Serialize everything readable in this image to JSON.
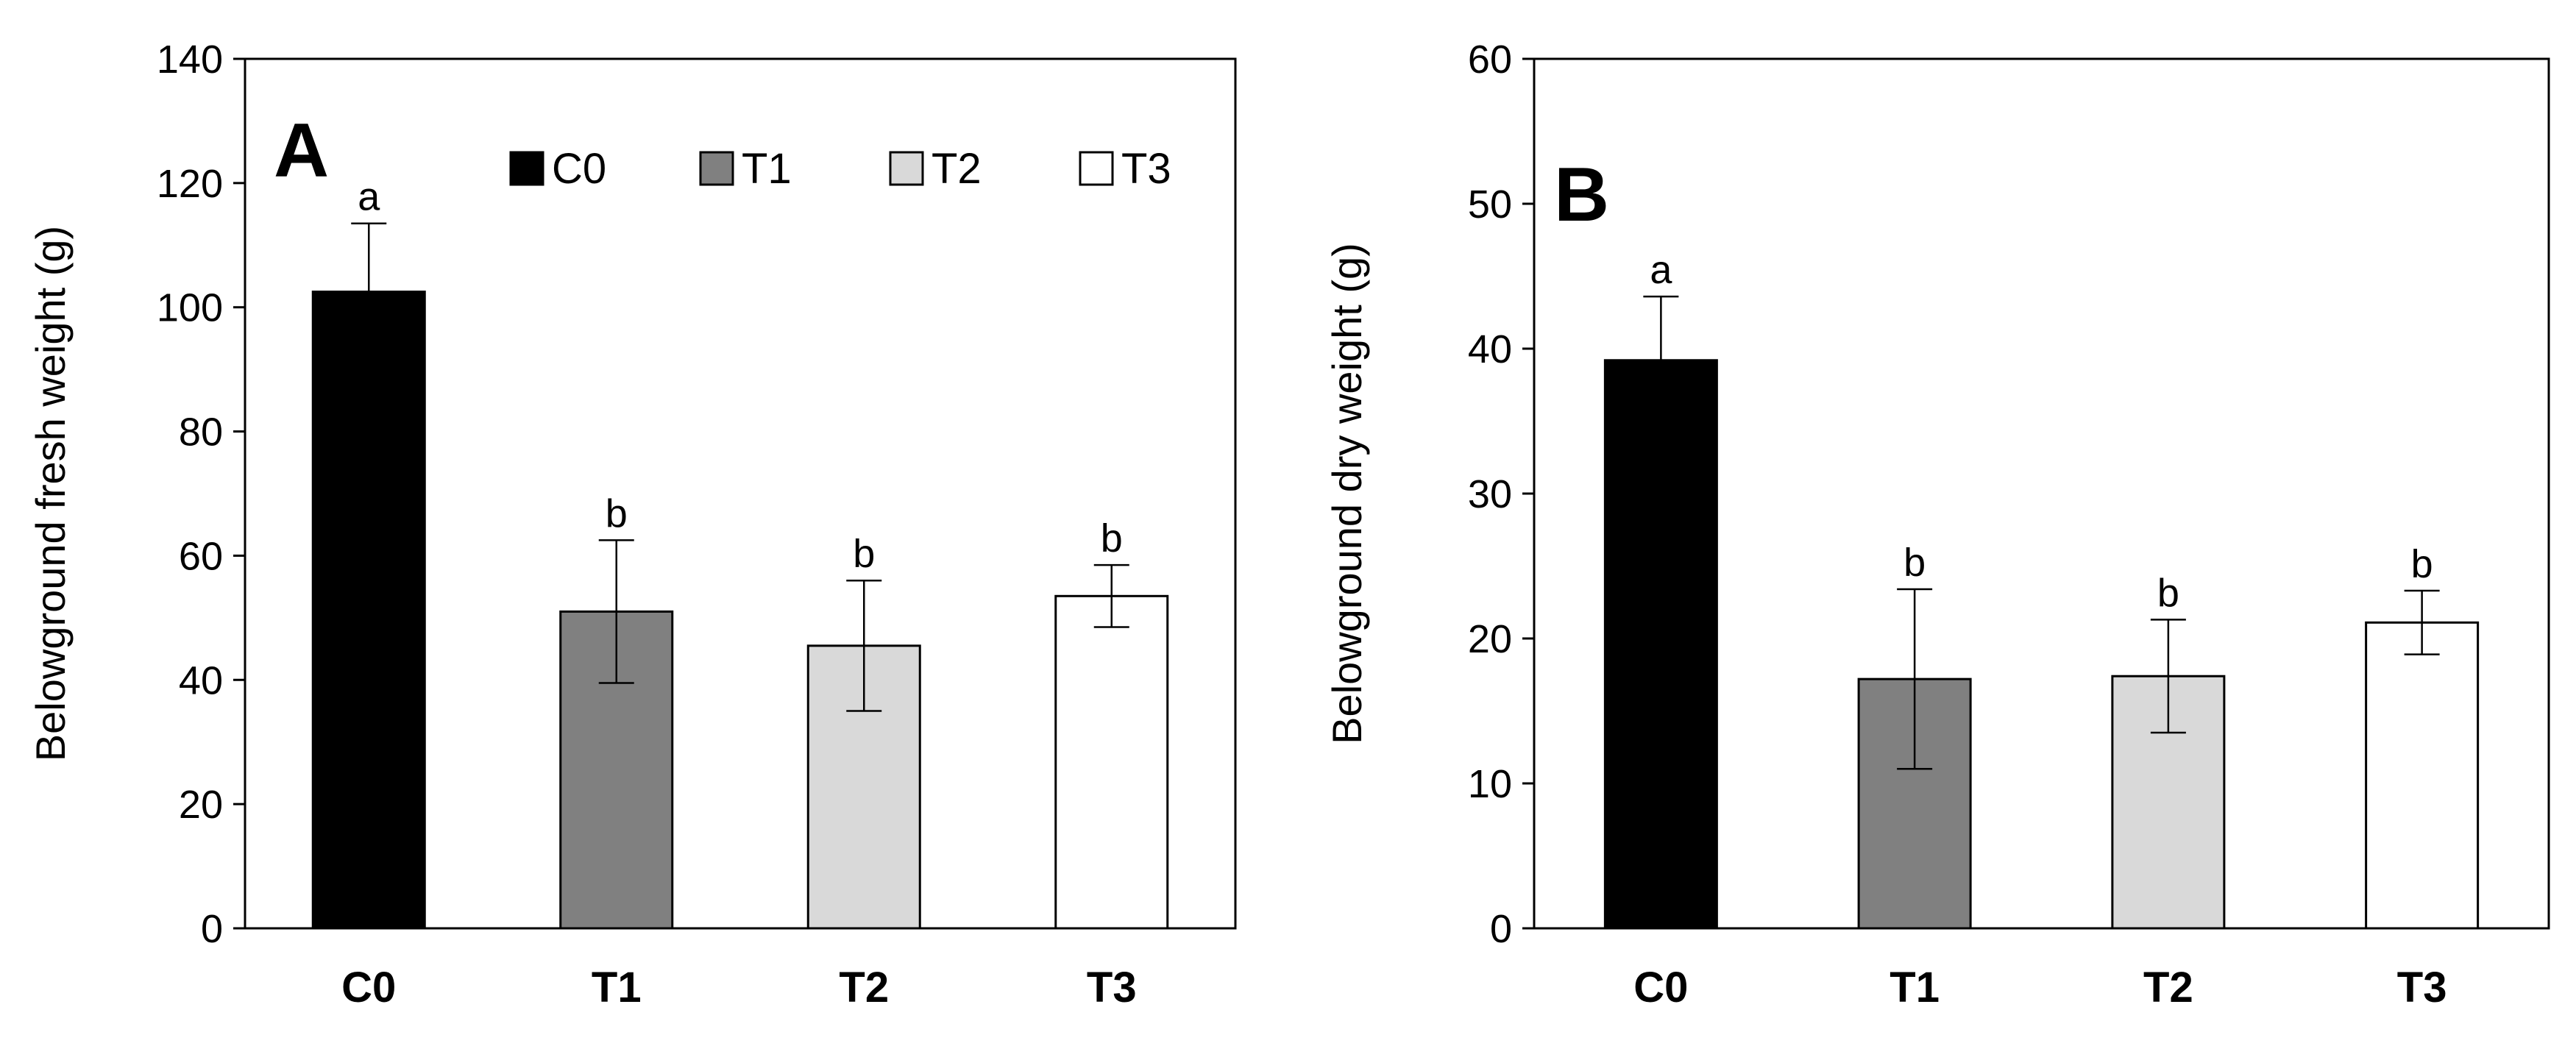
{
  "colors": {
    "C0": "#000000",
    "T1": "#808080",
    "T2": "#d9d9d9",
    "T3": "#ffffff",
    "stroke": "#000000"
  },
  "legend": {
    "items": [
      {
        "key": "C0",
        "label": "C0"
      },
      {
        "key": "T1",
        "label": "T1"
      },
      {
        "key": "T2",
        "label": "T2"
      },
      {
        "key": "T3",
        "label": "T3"
      }
    ],
    "placement": "top inside panel A"
  },
  "chart_data": [
    {
      "type": "bar",
      "panel_label": "A",
      "title": "",
      "xlabel": "",
      "ylabel": "Belowground fresh weight (g)",
      "categories": [
        "C0",
        "T1",
        "T2",
        "T3"
      ],
      "values": [
        102.5,
        51,
        45.5,
        53.5
      ],
      "errors": [
        11,
        11.5,
        10.5,
        5
      ],
      "significance": [
        "a",
        "b",
        "b",
        "b"
      ],
      "ylim": [
        0,
        140
      ],
      "yticks": [
        0,
        20,
        40,
        60,
        80,
        100,
        120,
        140
      ],
      "grid": false
    },
    {
      "type": "bar",
      "panel_label": "B",
      "title": "",
      "xlabel": "",
      "ylabel": "Belowground dry weight (g)",
      "categories": [
        "C0",
        "T1",
        "T2",
        "T3"
      ],
      "values": [
        39.2,
        17.2,
        17.4,
        21.1
      ],
      "errors": [
        4.4,
        6.2,
        3.9,
        2.2
      ],
      "significance": [
        "a",
        "b",
        "b",
        "b"
      ],
      "ylim": [
        0,
        60
      ],
      "yticks": [
        0,
        10,
        20,
        30,
        40,
        50,
        60
      ],
      "grid": false
    }
  ]
}
